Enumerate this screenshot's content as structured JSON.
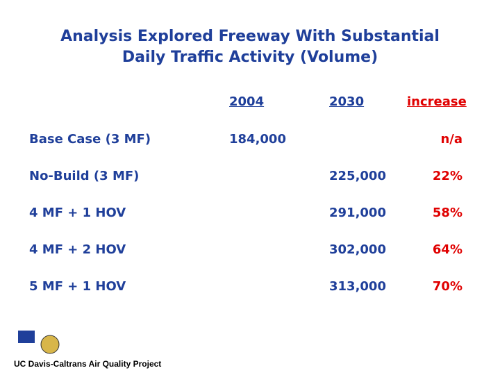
{
  "header": {
    "title": "Analysis Explored Freeway With Substantial Daily Traffic Activity (Volume)"
  },
  "table": {
    "columns": [
      "2004",
      "2030",
      "increase"
    ],
    "rows": [
      [
        "Base Case (3 MF)",
        "184,000",
        "",
        "n/a"
      ],
      [
        "No-Build (3 MF)",
        "",
        "225,000",
        "22%"
      ],
      [
        "4 MF + 1 HOV",
        "",
        "291,000",
        "58%"
      ],
      [
        "4 MF + 2 HOV",
        "",
        "302,000",
        "64%"
      ],
      [
        "5 MF + 1 HOV",
        "",
        "313,000",
        "70%"
      ]
    ]
  },
  "footer": {
    "text": "UC Davis-Caltrans Air Quality Project"
  }
}
